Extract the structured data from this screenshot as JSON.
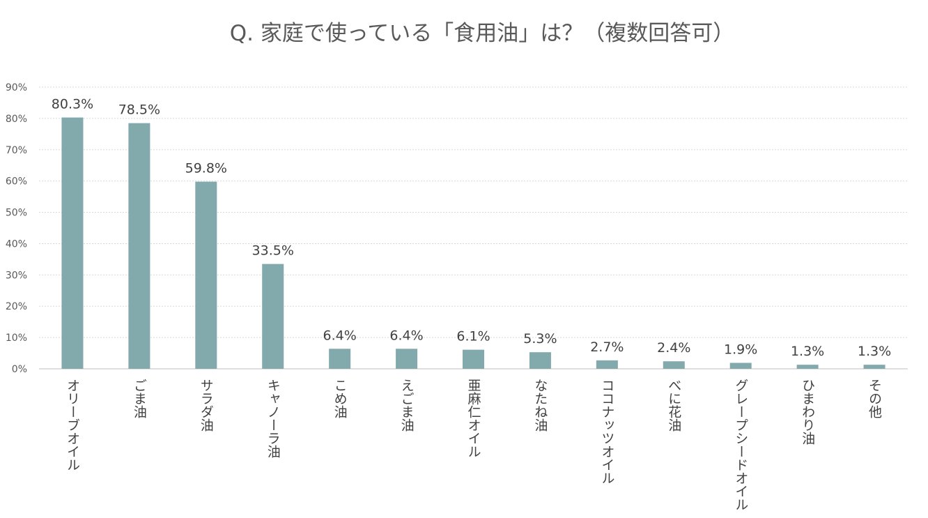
{
  "chart_data": {
    "type": "bar",
    "title": "Q.  家庭で使っている「食用油」は？（複数回答可）",
    "xlabel": "",
    "ylabel": "",
    "ylim": [
      0,
      90
    ],
    "yticks": [
      0,
      10,
      20,
      30,
      40,
      50,
      60,
      70,
      80,
      90
    ],
    "ytick_labels": [
      "0%",
      "10%",
      "20%",
      "30%",
      "40%",
      "50%",
      "60%",
      "70%",
      "80%",
      "90%"
    ],
    "grid": true,
    "legend": "none",
    "bar_color": "#82A9AC",
    "categories": [
      "オリーブオイル",
      "ごま油",
      "サラダ油",
      "キャノーラ油",
      "こめ油",
      "えごま油",
      "亜麻仁オイル",
      "なたね油",
      "ココナッツオイル",
      "べに花油",
      "グレープシードオイル",
      "ひまわり油",
      "その他"
    ],
    "values": [
      80.3,
      78.5,
      59.8,
      33.5,
      6.4,
      6.4,
      6.1,
      5.3,
      2.7,
      2.4,
      1.9,
      1.3,
      1.3
    ],
    "value_labels": [
      "80.3%",
      "78.5%",
      "59.8%",
      "33.5%",
      "6.4%",
      "6.4%",
      "6.1%",
      "5.3%",
      "2.7%",
      "2.4%",
      "1.9%",
      "1.3%",
      "1.3%"
    ]
  }
}
